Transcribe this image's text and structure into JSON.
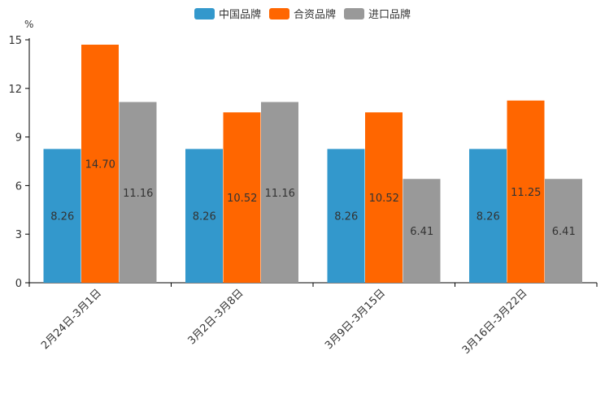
{
  "chart_data": {
    "type": "bar",
    "ylabel": "%",
    "ylim": [
      0,
      15
    ],
    "yticks": [
      "0",
      "3",
      "6",
      "9",
      "12",
      "15"
    ],
    "categories": [
      "2月24日-3月1日",
      "3月2日-3月8日",
      "3月9日-3月15日",
      "3月16日-3月22日"
    ],
    "series": [
      {
        "name": "中国品牌",
        "color": "#3398CC",
        "values": [
          8.26,
          8.26,
          8.26,
          8.26
        ],
        "labels": [
          "8.26",
          "8.26",
          "8.26",
          "8.26"
        ]
      },
      {
        "name": "合资品牌",
        "color": "#FF6600",
        "values": [
          14.7,
          10.52,
          10.52,
          11.25
        ],
        "labels": [
          "14.70",
          "10.52",
          "10.52",
          "11.25"
        ]
      },
      {
        "name": "进口品牌",
        "color": "#999999",
        "values": [
          11.16,
          11.16,
          6.41,
          6.41
        ],
        "labels": [
          "11.16",
          "11.16",
          "6.41",
          "6.41"
        ]
      }
    ],
    "legend_position": "top-center",
    "grid": false
  }
}
